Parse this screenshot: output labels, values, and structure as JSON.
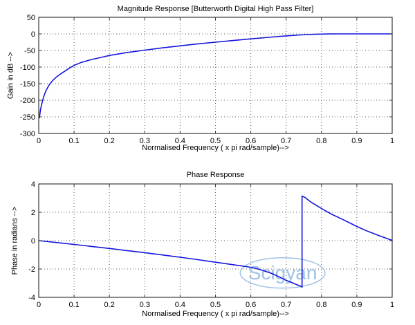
{
  "figure": {
    "background": "#ffffff",
    "line_color": "#1414dc",
    "grid_color": "#5a5a5a",
    "axis_color": "#3a3a3a",
    "text_color": "#000000"
  },
  "chart_data": [
    {
      "type": "line",
      "title": "Magnitude Response [Butterworth Digital High Pass Filter]",
      "xlabel": "Normalised Frequency ( x pi rad/sample)-->",
      "ylabel": "Gain in dB -->",
      "xlim": [
        0,
        1
      ],
      "ylim": [
        -300,
        50
      ],
      "grid": true,
      "legend": "none",
      "xticks": [
        0,
        0.1,
        0.2,
        0.3,
        0.4,
        0.5,
        0.6,
        0.7,
        0.8,
        0.9,
        1
      ],
      "xtick_labels": [
        "0",
        "0.1",
        "0.2",
        "0.3",
        "0.4",
        "0.5",
        "0.6",
        "0.7",
        "0.8",
        "0.9",
        "1"
      ],
      "yticks": [
        50,
        0,
        -50,
        -100,
        -150,
        -200,
        -250,
        -300
      ],
      "ytick_labels": [
        "50",
        "0",
        "-50",
        "-100",
        "-150",
        "-200",
        "-250",
        "-300"
      ],
      "line_color": "#1414dc",
      "series": [
        {
          "name": "magnitude-response",
          "x": [
            0.002,
            0.005,
            0.01,
            0.015,
            0.02,
            0.03,
            0.04,
            0.05,
            0.06,
            0.07,
            0.08,
            0.09,
            0.1,
            0.12,
            0.15,
            0.18,
            0.2,
            0.25,
            0.3,
            0.35,
            0.4,
            0.45,
            0.5,
            0.55,
            0.6,
            0.65,
            0.68,
            0.7,
            0.72,
            0.74,
            0.76,
            0.78,
            0.8,
            0.82,
            0.85,
            0.9,
            0.95,
            1
          ],
          "y": [
            -253,
            -227,
            -205,
            -186,
            -172,
            -153,
            -140,
            -130,
            -122,
            -115,
            -108,
            -101,
            -95,
            -86,
            -77,
            -70,
            -65,
            -56,
            -49,
            -42,
            -36,
            -30,
            -25,
            -20,
            -15,
            -10.5,
            -7.8,
            -6,
            -4.5,
            -3.2,
            -2,
            -1.2,
            -0.6,
            -0.3,
            -0.1,
            0,
            0,
            0
          ]
        }
      ]
    },
    {
      "type": "line",
      "title": "Phase Response",
      "xlabel": "Normalised Frequency ( x pi rad/sample)-->",
      "ylabel": "Phase in radians -->",
      "xlim": [
        0,
        1
      ],
      "ylim": [
        -4,
        4
      ],
      "grid": true,
      "legend": "none",
      "xticks": [
        0,
        0.1,
        0.2,
        0.3,
        0.4,
        0.5,
        0.6,
        0.7,
        0.8,
        0.9,
        1
      ],
      "xtick_labels": [
        "0",
        "0.1",
        "0.2",
        "0.3",
        "0.4",
        "0.5",
        "0.6",
        "0.7",
        "0.8",
        "0.9",
        "1"
      ],
      "yticks": [
        4,
        2,
        0,
        -2,
        -4
      ],
      "ytick_labels": [
        "4",
        "2",
        "0",
        "-2",
        "-4"
      ],
      "line_color": "#1414dc",
      "phase_jump_x": 0.745,
      "series": [
        {
          "name": "phase-response",
          "x": [
            0,
            0.05,
            0.1,
            0.15,
            0.2,
            0.25,
            0.3,
            0.35,
            0.4,
            0.45,
            0.5,
            0.55,
            0.6,
            0.62,
            0.64,
            0.66,
            0.68,
            0.7,
            0.72,
            0.73,
            0.74,
            0.745,
            0.745,
            0.755,
            0.77,
            0.79,
            0.81,
            0.83,
            0.86,
            0.9,
            0.93,
            0.96,
            1
          ],
          "y": [
            0,
            -0.13,
            -0.27,
            -0.41,
            -0.55,
            -0.7,
            -0.85,
            -1.01,
            -1.17,
            -1.34,
            -1.52,
            -1.7,
            -1.88,
            -2,
            -2.15,
            -2.32,
            -2.55,
            -2.8,
            -3,
            -3.1,
            -3.2,
            -3.28,
            3.15,
            3.02,
            2.72,
            2.42,
            2.12,
            1.85,
            1.5,
            1,
            0.67,
            0.38,
            0.02
          ]
        }
      ],
      "watermark": {
        "text": "Scigyan",
        "color": "#9dc3e6",
        "cx": 0.69,
        "cy": -2.28,
        "rx": 0.12,
        "ry": 1.07,
        "font_size": 28
      }
    }
  ]
}
